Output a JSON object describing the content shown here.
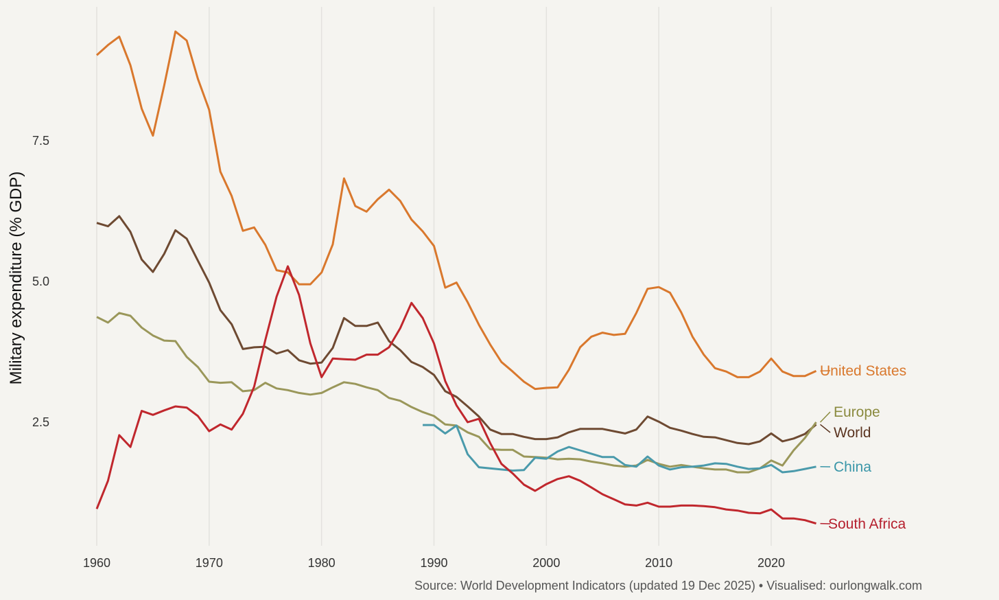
{
  "chart_data": {
    "type": "line",
    "title": "",
    "xlabel": "",
    "ylabel": "Military expenditure (% GDP)",
    "xlim": [
      1960,
      2024
    ],
    "ylim": [
      0.6,
      9.5
    ],
    "x_ticks": [
      "1960",
      "1970",
      "1980",
      "1990",
      "2000",
      "2010",
      "2020"
    ],
    "y_ticks": [
      "2.5",
      "5.0",
      "7.5"
    ],
    "grid": "vertical",
    "legend": "direct labels at right end of lines",
    "caption": "Source: World Development Indicators (updated 19 Dec 2025) • Visualised: ourlongwalk.com",
    "series": [
      {
        "name": "United States",
        "color": "#d9782d",
        "label_color": "#d9782d",
        "start": 1960,
        "values": [
          9.02,
          9.2,
          9.35,
          8.84,
          8.07,
          7.59,
          8.48,
          9.44,
          9.28,
          8.6,
          8.05,
          6.95,
          6.52,
          5.9,
          5.96,
          5.65,
          5.2,
          5.16,
          4.95,
          4.95,
          5.16,
          5.66,
          6.83,
          6.34,
          6.24,
          6.46,
          6.63,
          6.43,
          6.1,
          5.89,
          5.63,
          4.89,
          4.98,
          4.63,
          4.23,
          3.88,
          3.57,
          3.4,
          3.22,
          3.09,
          3.11,
          3.12,
          3.43,
          3.83,
          4.02,
          4.09,
          4.05,
          4.07,
          4.44,
          4.87,
          4.9,
          4.8,
          4.45,
          4.02,
          3.7,
          3.46,
          3.4,
          3.3,
          3.3,
          3.4,
          3.63,
          3.4,
          3.32,
          3.32,
          3.41
        ]
      },
      {
        "name": "World",
        "color": "#6e4a32",
        "label_color": "#5a3420",
        "start": 1960,
        "values": [
          6.04,
          5.98,
          6.16,
          5.88,
          5.39,
          5.17,
          5.49,
          5.91,
          5.76,
          5.37,
          4.98,
          4.49,
          4.24,
          3.8,
          3.83,
          3.84,
          3.72,
          3.78,
          3.6,
          3.54,
          3.56,
          3.82,
          4.35,
          4.21,
          4.21,
          4.27,
          3.94,
          3.78,
          3.57,
          3.48,
          3.34,
          3.05,
          2.95,
          2.78,
          2.6,
          2.37,
          2.29,
          2.29,
          2.24,
          2.2,
          2.2,
          2.23,
          2.32,
          2.38,
          2.38,
          2.38,
          2.34,
          2.3,
          2.37,
          2.6,
          2.51,
          2.4,
          2.35,
          2.29,
          2.24,
          2.23,
          2.18,
          2.13,
          2.11,
          2.16,
          2.3,
          2.16,
          2.21,
          2.29,
          2.46
        ]
      },
      {
        "name": "Europe",
        "color": "#9a975a",
        "label_color": "#8a8a3e",
        "start": 1960,
        "values": [
          4.37,
          4.27,
          4.44,
          4.39,
          4.18,
          4.04,
          3.95,
          3.94,
          3.66,
          3.48,
          3.22,
          3.2,
          3.21,
          3.05,
          3.07,
          3.2,
          3.1,
          3.07,
          3.02,
          2.99,
          3.02,
          3.12,
          3.21,
          3.18,
          3.12,
          3.07,
          2.93,
          2.88,
          2.77,
          2.68,
          2.61,
          2.46,
          2.44,
          2.32,
          2.24,
          2.02,
          2.01,
          2.01,
          1.89,
          1.88,
          1.87,
          1.84,
          1.85,
          1.84,
          1.8,
          1.77,
          1.73,
          1.71,
          1.73,
          1.83,
          1.76,
          1.71,
          1.74,
          1.71,
          1.68,
          1.66,
          1.66,
          1.61,
          1.61,
          1.68,
          1.82,
          1.73,
          2.0,
          2.22,
          2.5
        ]
      },
      {
        "name": "China",
        "color": "#4a9aab",
        "label_color": "#3a96a8",
        "start": 1989,
        "values": [
          2.45,
          2.45,
          2.3,
          2.44,
          1.93,
          1.7,
          1.68,
          1.66,
          1.64,
          1.65,
          1.87,
          1.85,
          1.98,
          2.06,
          2.0,
          1.94,
          1.88,
          1.88,
          1.74,
          1.71,
          1.89,
          1.73,
          1.66,
          1.7,
          1.71,
          1.73,
          1.77,
          1.76,
          1.71,
          1.67,
          1.68,
          1.74,
          1.61,
          1.63,
          1.67,
          1.71
        ]
      },
      {
        "name": "South Africa",
        "color": "#c0272d",
        "label_color": "#b5202e",
        "start": 1960,
        "values": [
          0.96,
          1.46,
          2.27,
          2.06,
          2.7,
          2.63,
          2.71,
          2.78,
          2.76,
          2.61,
          2.34,
          2.46,
          2.37,
          2.65,
          3.13,
          3.96,
          4.73,
          5.27,
          4.76,
          3.9,
          3.3,
          3.63,
          3.62,
          3.61,
          3.7,
          3.7,
          3.83,
          4.17,
          4.62,
          4.35,
          3.9,
          3.23,
          2.8,
          2.5,
          2.56,
          2.13,
          1.76,
          1.59,
          1.39,
          1.28,
          1.4,
          1.49,
          1.54,
          1.46,
          1.34,
          1.22,
          1.13,
          1.04,
          1.02,
          1.07,
          1.0,
          1.0,
          1.02,
          1.02,
          1.01,
          0.99,
          0.95,
          0.93,
          0.89,
          0.88,
          0.95,
          0.79,
          0.79,
          0.76,
          0.7
        ]
      }
    ]
  }
}
